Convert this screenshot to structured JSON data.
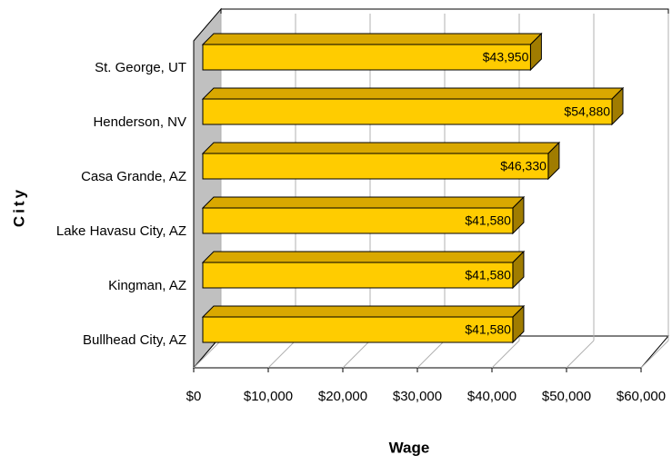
{
  "chart_data": {
    "type": "bar3d_horizontal",
    "categories": [
      "St. George, UT",
      "Henderson, NV",
      "Casa Grande, AZ",
      "Lake Havasu City, AZ",
      "Kingman, AZ",
      "Bullhead City, AZ"
    ],
    "values": [
      43950,
      54880,
      46330,
      41580,
      41580,
      41580
    ],
    "value_labels": [
      "$43,950",
      "$54,880",
      "$46,330",
      "$41,580",
      "$41,580",
      "$41,580"
    ],
    "color": "#ffcc00",
    "xlabel": "Wage",
    "ylabel": "City",
    "xlim": [
      0,
      60000
    ],
    "xticks": [
      {
        "value": 0,
        "label": "$0"
      },
      {
        "value": 10000,
        "label": "$10,000"
      },
      {
        "value": 20000,
        "label": "$20,000"
      },
      {
        "value": 30000,
        "label": "$30,000"
      },
      {
        "value": 40000,
        "label": "$40,000"
      },
      {
        "value": 50000,
        "label": "$50,000"
      },
      {
        "value": 60000,
        "label": "$60,000"
      }
    ],
    "grid": true
  }
}
